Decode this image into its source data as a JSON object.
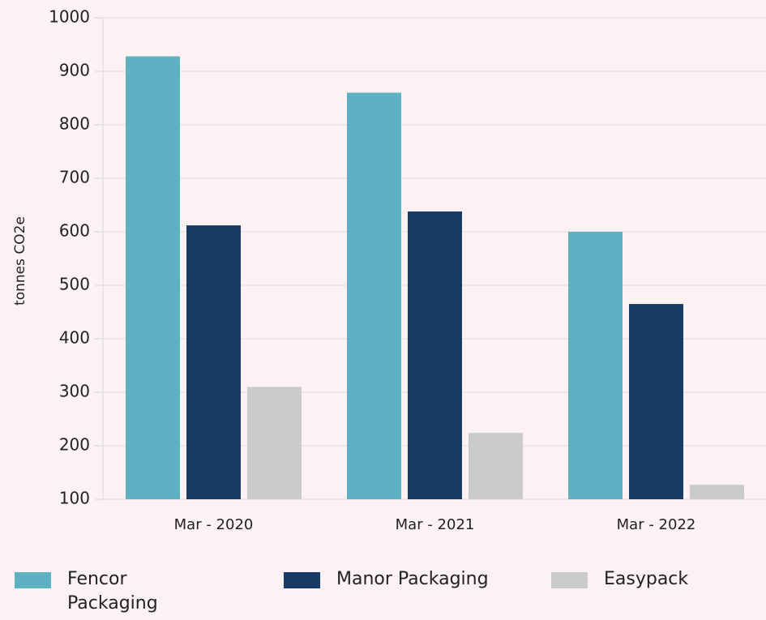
{
  "chart_data": {
    "type": "bar",
    "y_label": "tonnes CO2e",
    "categories": [
      "Mar - 2020",
      "Mar - 2021",
      "Mar - 2022"
    ],
    "series": [
      {
        "name": "Fencor Packaging",
        "color": "#5fb0c2",
        "values": [
          928,
          860,
          600
        ]
      },
      {
        "name": "Manor Packaging",
        "color": "#1a3a66",
        "values": [
          612,
          638,
          465
        ]
      },
      {
        "name": "Easypack",
        "color": "#cbcbcb",
        "values": [
          310,
          224,
          127
        ]
      }
    ],
    "ylim": [
      100,
      1000
    ],
    "yticks": [
      100,
      200,
      300,
      400,
      500,
      600,
      700,
      800,
      900,
      1000
    ],
    "grid": true,
    "legend": "bottom"
  }
}
